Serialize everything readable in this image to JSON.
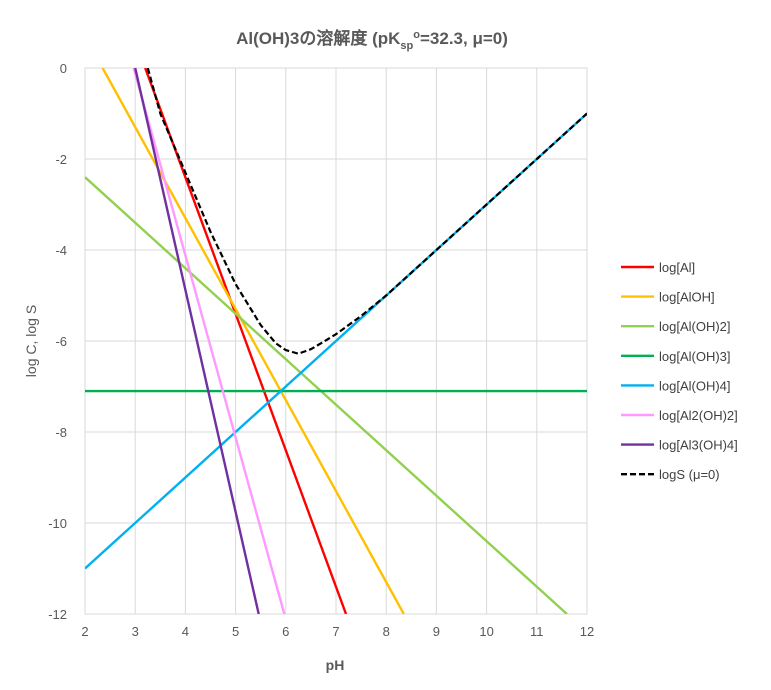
{
  "chart_data": {
    "type": "line",
    "title": {
      "prefix": "Al(OH)3の溶解度 (pK",
      "sub": "sp",
      "sup": "o",
      "suffix": "=32.3, μ=0)"
    },
    "xlabel": "pH",
    "ylabel": "log C, log S",
    "xlim": [
      2,
      12
    ],
    "ylim": [
      -12,
      0
    ],
    "xticks": [
      2,
      3,
      4,
      5,
      6,
      7,
      8,
      9,
      10,
      11,
      12
    ],
    "yticks": [
      0,
      -2,
      -4,
      -6,
      -8,
      -10,
      -12
    ],
    "grid": true,
    "legend_position": "right",
    "series": [
      {
        "name": "log[Al]",
        "color": "#ff0000",
        "style": "solid",
        "points": [
          [
            3.2,
            0
          ],
          [
            7.2,
            -12
          ]
        ]
      },
      {
        "name": "log[AlOH]",
        "color": "#ffc000",
        "style": "solid",
        "points": [
          [
            2.35,
            0
          ],
          [
            8.35,
            -12
          ]
        ]
      },
      {
        "name": "log[Al(OH)2]",
        "color": "#92d050",
        "style": "solid",
        "points": [
          [
            2,
            -2.4
          ],
          [
            11.6,
            -12
          ]
        ]
      },
      {
        "name": "log[Al(OH)3]",
        "color": "#00b050",
        "style": "solid",
        "points": [
          [
            2,
            -7.1
          ],
          [
            12,
            -7.1
          ]
        ]
      },
      {
        "name": "log[Al(OH)4]",
        "color": "#00b0f0",
        "style": "solid",
        "points": [
          [
            2,
            -11.0
          ],
          [
            12,
            -1.0
          ]
        ]
      },
      {
        "name": "log[Al2(OH)2]",
        "color": "#ff99ff",
        "style": "solid",
        "points": [
          [
            2.97,
            0
          ],
          [
            5.97,
            -12
          ]
        ]
      },
      {
        "name": "log[Al3(OH)4]",
        "color": "#7030a0",
        "style": "solid",
        "points": [
          [
            3.0,
            0
          ],
          [
            5.46,
            -12
          ]
        ]
      },
      {
        "name": "logS (μ=0)",
        "color": "#000000",
        "style": "dashed",
        "points": [
          [
            3.25,
            0
          ],
          [
            3.5,
            -1.0
          ],
          [
            4.0,
            -2.3
          ],
          [
            4.5,
            -3.6
          ],
          [
            5.0,
            -4.75
          ],
          [
            5.5,
            -5.65
          ],
          [
            5.8,
            -6.05
          ],
          [
            6.0,
            -6.2
          ],
          [
            6.25,
            -6.28
          ],
          [
            6.5,
            -6.18
          ],
          [
            6.75,
            -6.02
          ],
          [
            7.0,
            -5.85
          ],
          [
            7.5,
            -5.45
          ],
          [
            8.0,
            -5.0
          ],
          [
            9.0,
            -4.0
          ],
          [
            10.0,
            -3.0
          ],
          [
            11.0,
            -2.0
          ],
          [
            12.0,
            -1.0
          ]
        ]
      }
    ]
  }
}
